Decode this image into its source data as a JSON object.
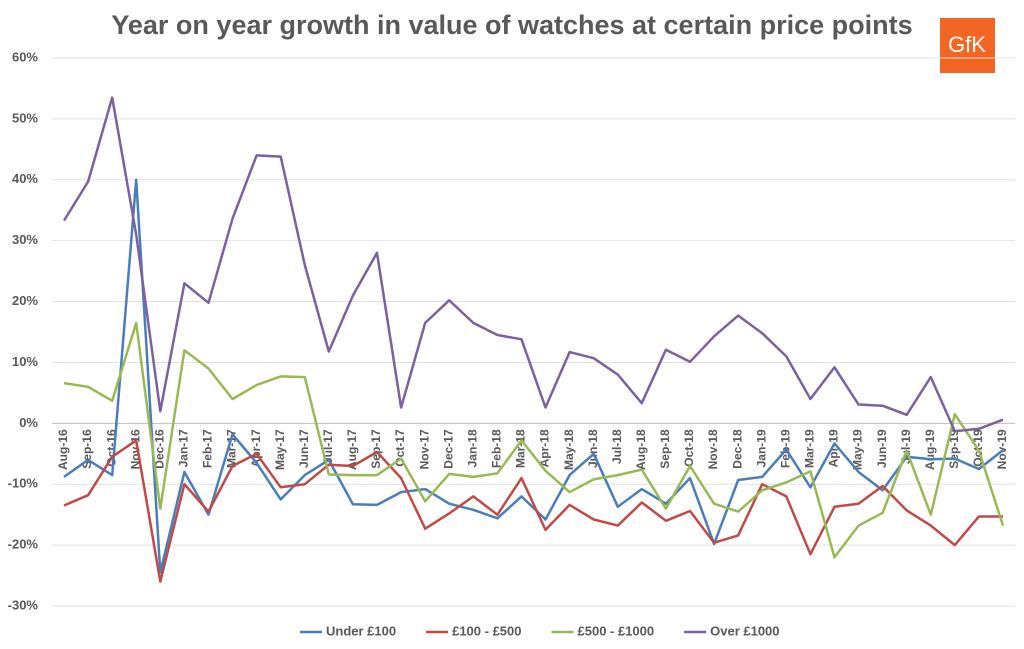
{
  "logo": "GfK",
  "chart_data": {
    "type": "line",
    "title": "Year on year growth in value of watches at certain price points",
    "categories": [
      "Aug-16",
      "Sep-16",
      "Oct-16",
      "Nov-16",
      "Dec-16",
      "Jan-17",
      "Feb-17",
      "Mar-17",
      "Apr-17",
      "May-17",
      "Jun-17",
      "Jul-17",
      "Aug-17",
      "Sep-17",
      "Oct-17",
      "Nov-17",
      "Dec-17",
      "Jan-18",
      "Feb-18",
      "Mar-18",
      "Apr-18",
      "May-18",
      "Jun-18",
      "Jul-18",
      "Aug-18",
      "Sep-18",
      "Oct-18",
      "Nov-18",
      "Dec-18",
      "Jan-19",
      "Feb-19",
      "Mar-19",
      "Apr-19",
      "May-19",
      "Jun-19",
      "Jul-19",
      "Aug-19",
      "Sep-19",
      "Oct-19",
      "Nov-19"
    ],
    "series": [
      {
        "name": "Under £100",
        "color": "#4a7ebb",
        "values": [
          -8.8,
          -6,
          -8.5,
          40,
          -24.5,
          -8,
          -15,
          -1.8,
          -6.5,
          -12.5,
          -8.5,
          -6,
          -13.3,
          -13.4,
          -11.3,
          -10.8,
          -13.2,
          -14.2,
          -15.6,
          -12,
          -15.8,
          -8.5,
          -5,
          -13.7,
          -10.8,
          -13.2,
          -9,
          -19.8,
          -9.3,
          -8.8,
          -4.3,
          -10.5,
          -3.3,
          -8,
          -11,
          -5.5,
          -5.9,
          -5.8,
          -7.5,
          -4.4
        ]
      },
      {
        "name": "£100 - £500",
        "color": "#be4b48",
        "values": [
          -13.5,
          -11.8,
          -5.5,
          -2.8,
          -26,
          -10,
          -14.5,
          -7,
          -5,
          -10.5,
          -10,
          -6.8,
          -7,
          -4.7,
          -9,
          -17.3,
          -14.8,
          -12,
          -15,
          -9,
          -17.5,
          -13.4,
          -15.8,
          -16.8,
          -13,
          -16,
          -14.4,
          -19.6,
          -18.4,
          -10,
          -12,
          -21.5,
          -13.7,
          -13.2,
          -10.3,
          -14.3,
          -16.8,
          -20,
          -15.3,
          -15.3
        ]
      },
      {
        "name": "£500 - £1000",
        "color": "#98b954",
        "values": [
          6.6,
          6,
          3.7,
          16.5,
          -14,
          12,
          9,
          4,
          6.3,
          7.7,
          7.6,
          -8.4,
          -8.5,
          -8.5,
          -5.8,
          -12.8,
          -8.3,
          -8.8,
          -8.2,
          -2.8,
          -7.8,
          -11.3,
          -9.2,
          -8.5,
          -7.6,
          -14,
          -7,
          -13.2,
          -14.5,
          -11,
          -9.7,
          -7.9,
          -22,
          -16.8,
          -14.7,
          -4.5,
          -15,
          1.5,
          -4.5,
          -16.8
        ]
      },
      {
        "name": "Over £1000",
        "color": "#7d60a0",
        "values": [
          33.3,
          39.7,
          53.5,
          31,
          2,
          23,
          19.8,
          33.6,
          44,
          43.8,
          26,
          11.8,
          21,
          28,
          2.6,
          16.5,
          20.2,
          16.5,
          14.5,
          13.8,
          2.6,
          11.7,
          10.7,
          8,
          3.3,
          12.1,
          10.1,
          14.3,
          17.7,
          14.8,
          11,
          4,
          9.2,
          3.1,
          2.9,
          1.4,
          7.6,
          -1.3,
          -0.9,
          0.6
        ]
      }
    ],
    "ylim": [
      -30,
      60
    ],
    "yticks": [
      {
        "value": -30,
        "label": "-30%"
      },
      {
        "value": -20,
        "label": "-20%"
      },
      {
        "value": -10,
        "label": "-10%"
      },
      {
        "value": 0,
        "label": "0%"
      },
      {
        "value": 10,
        "label": "10%"
      },
      {
        "value": 20,
        "label": "20%"
      },
      {
        "value": 30,
        "label": "30%"
      },
      {
        "value": 40,
        "label": "40%"
      },
      {
        "value": 50,
        "label": "50%"
      },
      {
        "value": 60,
        "label": "60%"
      }
    ],
    "grid": true,
    "legend": "bottom"
  }
}
